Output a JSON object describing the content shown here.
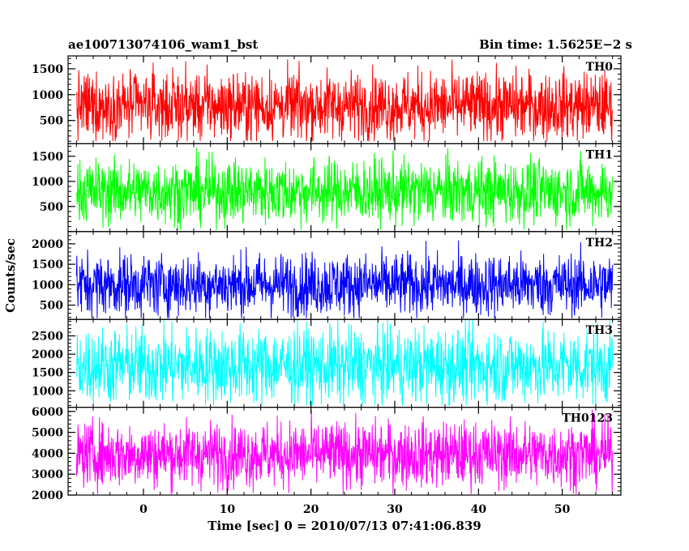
{
  "chart_data": {
    "type": "line",
    "title_left": "ae100713074106_wam1_bst",
    "title_right": "Bin time: 1.5625E−2 s",
    "xlabel": "Time [sec] 0 = 2010/07/13 07:41:06.839",
    "ylabel": "Counts/sec",
    "xlim": [
      -9,
      57
    ],
    "data_range": [
      -8,
      56
    ],
    "bin_time": 0.015625,
    "x_ticks": [
      0,
      10,
      20,
      30,
      40,
      50
    ],
    "x_tick_labels": [
      "0",
      "10",
      "20",
      "30",
      "40",
      "50"
    ],
    "panels": [
      {
        "name": "TH0",
        "color": "#ff0000",
        "ylim": [
          50,
          1750
        ],
        "y_ticks": [
          500,
          1000,
          1500
        ],
        "y_tick_labels": [
          "500",
          "1000",
          "1500"
        ],
        "mean": 780,
        "spread": 330,
        "min": 100,
        "max": 1750
      },
      {
        "name": "TH1",
        "color": "#00ff00",
        "ylim": [
          0,
          1750
        ],
        "y_ticks": [
          500,
          1000,
          1500
        ],
        "y_tick_labels": [
          "500",
          "1000",
          "1500"
        ],
        "mean": 800,
        "spread": 320,
        "min": 30,
        "max": 1750
      },
      {
        "name": "TH2",
        "color": "#0000ff",
        "ylim": [
          150,
          2300
        ],
        "y_ticks": [
          500,
          1000,
          1500,
          2000
        ],
        "y_tick_labels": [
          "500",
          "1000",
          "1500",
          "2000"
        ],
        "mean": 1000,
        "spread": 380,
        "min": 180,
        "max": 2300
      },
      {
        "name": "TH3",
        "color": "#00ffff",
        "ylim": [
          550,
          2950
        ],
        "y_ticks": [
          1000,
          1500,
          2000,
          2500
        ],
        "y_tick_labels": [
          "1000",
          "1500",
          "2000",
          "2500"
        ],
        "mean": 1680,
        "spread": 520,
        "min": 600,
        "max": 2950
      },
      {
        "name": "TH0123",
        "color": "#ff00ff",
        "ylim": [
          2000,
          6200
        ],
        "y_ticks": [
          2000,
          3000,
          4000,
          5000,
          6000
        ],
        "y_tick_labels": [
          "2000",
          "3000",
          "4000",
          "5000",
          "6000"
        ],
        "mean": 3950,
        "spread": 780,
        "min": 2050,
        "max": 6200
      }
    ]
  }
}
